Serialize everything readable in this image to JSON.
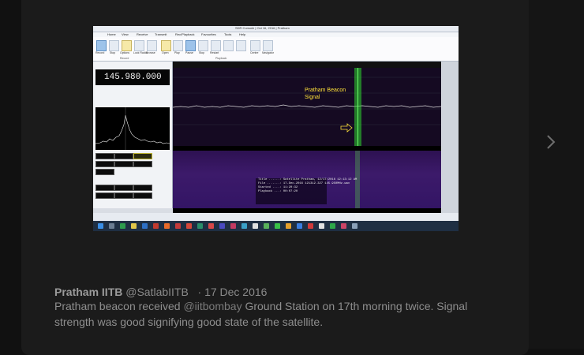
{
  "tweet": {
    "author_name": "Pratham IITB",
    "handle": "@SatlabIITB",
    "separator": "·",
    "date": "17 Dec 2016",
    "text_before": "Pratham beacon received",
    "mention": "@iitbombay",
    "text_after": "Ground Station on 17th morning twice. Signal strength was good signifying good state of the satellite."
  },
  "navigation": {
    "next_icon": "chevron-right-icon"
  },
  "screenshot": {
    "window_title": "SDR Console | Oct 16, 2016 | Pratham",
    "menu_items": [
      "Home",
      "View",
      "Receive",
      "Transmit",
      "Rec/Playback",
      "Favourites",
      "Tools",
      "Help"
    ],
    "ribbon_buttons": [
      "Record",
      "Stop",
      "Options",
      "Lock Radio",
      "Browse",
      "Open",
      "Play",
      "Pause",
      "Stop",
      "Restart",
      "Back 5 seconds",
      "Forward 5 seconds",
      "Centre",
      "Navigator"
    ],
    "ribbon_groups": [
      "Record",
      "Playback"
    ],
    "frequency": "145.980.000",
    "beacon_label_line1": "Pratham Beacon",
    "beacon_label_line2": "Signal",
    "info_lines": [
      "Title ......: Satellite Pratham, 12/17/2016 12:13:12 AM",
      "File .......: 17-Dec-2016 121312.327 145.950MHz.wav",
      "Started ....: 11:20:32",
      "Playback ...: 00:07:20"
    ],
    "colors": {
      "beacon_text": "#ffe23a",
      "signal_line": "#3cff3c",
      "spectrum_bg": "#150a22",
      "waterfall": "#3c1a6a"
    }
  }
}
